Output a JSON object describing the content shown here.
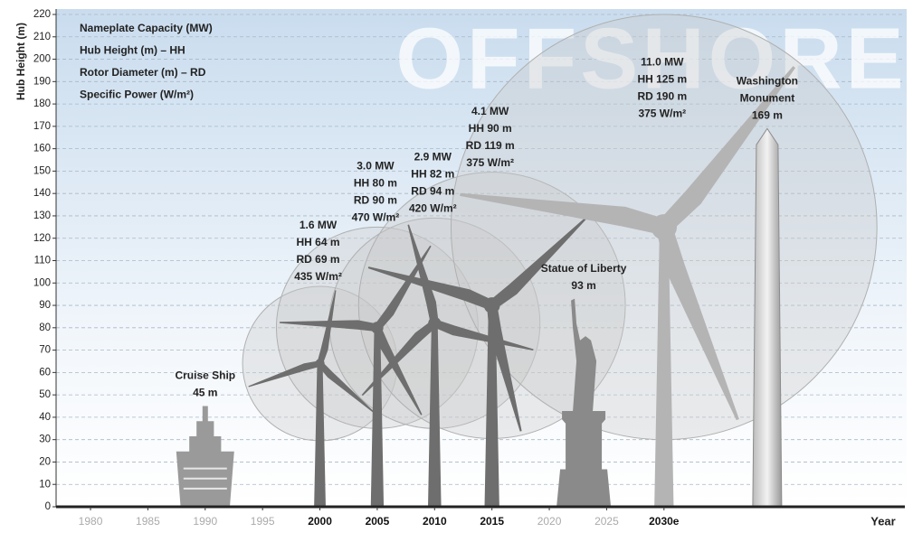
{
  "chart_data": {
    "type": "pictogram",
    "watermark": "OFFSHORE",
    "y_label": "Hub Height (m)",
    "x_label": "Year",
    "legend": [
      "Nameplate Capacity (MW)",
      "Hub Height (m) – HH",
      "Rotor Diameter (m) – RD",
      "Specific Power (W/m²)"
    ],
    "ylim": [
      0,
      220
    ],
    "yticks": [
      0,
      10,
      20,
      30,
      40,
      50,
      60,
      70,
      80,
      90,
      100,
      110,
      120,
      130,
      140,
      150,
      160,
      170,
      180,
      190,
      200,
      210,
      220
    ],
    "xlim": [
      1977,
      2051
    ],
    "xticks": [
      1980,
      1985,
      1990,
      1995,
      2000,
      2005,
      2010,
      2015,
      2020,
      2025,
      {
        "value": 2030,
        "label": "2030e"
      }
    ],
    "grid": true,
    "turbines": [
      {
        "year": 2000,
        "capacity": "1.6 MW",
        "hub_height": 64,
        "hub_height_label": "HH 64 m",
        "rotor_diameter": 69,
        "rotor_diameter_label": "RD 69 m",
        "specific_power": "435 W/m²",
        "color": "#6e6e6e"
      },
      {
        "year": 2005,
        "capacity": "3.0 MW",
        "hub_height": 80,
        "hub_height_label": "HH 80 m",
        "rotor_diameter": 90,
        "rotor_diameter_label": "RD 90 m",
        "specific_power": "470 W/m²",
        "color": "#6e6e6e"
      },
      {
        "year": 2010,
        "capacity": "2.9 MW",
        "hub_height": 82,
        "hub_height_label": "HH 82 m",
        "rotor_diameter": 94,
        "rotor_diameter_label": "RD 94 m",
        "specific_power": "420 W/m²",
        "color": "#6e6e6e"
      },
      {
        "year": 2015,
        "capacity": "4.1 MW",
        "hub_height": 90,
        "hub_height_label": "HH 90 m",
        "rotor_diameter": 119,
        "rotor_diameter_label": "RD 119 m",
        "specific_power": "375 W/m²",
        "color": "#6e6e6e"
      },
      {
        "year": 2030,
        "capacity": "11.0 MW",
        "hub_height": 125,
        "hub_height_label": "HH 125 m",
        "rotor_diameter": 190,
        "rotor_diameter_label": "RD 190 m",
        "specific_power": "375 W/m²",
        "color": "#b4b4b4"
      }
    ],
    "landmarks": [
      {
        "name_lines": [
          "Cruise Ship"
        ],
        "kind": "ship",
        "year": 1990,
        "height": 45,
        "height_label": "45 m",
        "color": "#9a9a9a"
      },
      {
        "name_lines": [
          "Statue of Liberty"
        ],
        "kind": "statue",
        "year": 2023,
        "height": 93,
        "height_label": "93 m",
        "color": "#8a8a8a"
      },
      {
        "name_lines": [
          "Washington",
          "Monument"
        ],
        "kind": "obelisk",
        "year": 2039,
        "height": 169,
        "height_label": "169 m",
        "color": "#8c8c8c"
      }
    ]
  }
}
